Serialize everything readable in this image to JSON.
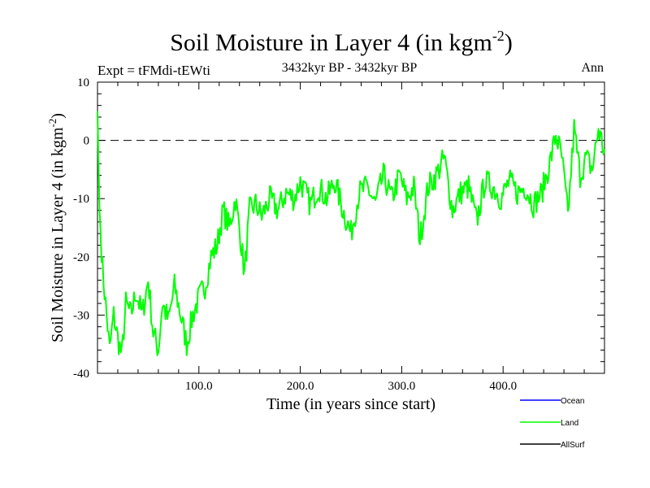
{
  "chart_data": {
    "type": "line",
    "title": "Soil Moisture in Layer 4 (in kgm",
    "title_sup": "-2",
    "title_close": ")",
    "subtitle_left": "Expt = tFMdi-tEWti",
    "subtitle_center": "3432kyr BP - 3432kyr BP",
    "subtitle_right": "Ann",
    "xlabel": "Time (in years since start)",
    "ylabel": "Soil Moisture in Layer 4 (in kgm",
    "ylabel_sup": "-2",
    "ylabel_close": ")",
    "xlim": [
      0,
      500
    ],
    "ylim": [
      -40,
      10
    ],
    "x_ticks": [
      100,
      200,
      300,
      400
    ],
    "x_tick_labels": [
      "100.0",
      "200.0",
      "300.0",
      "400.0"
    ],
    "y_ticks": [
      -40,
      -30,
      -20,
      -10,
      0,
      10
    ],
    "y_tick_labels": [
      "-40",
      "-30",
      "-20",
      "-10",
      "0",
      "10"
    ],
    "reference_line": 0,
    "series": [
      {
        "name": "Land",
        "color": "#00ff00",
        "key_points": [
          [
            0,
            5
          ],
          [
            2,
            -12
          ],
          [
            5,
            -22
          ],
          [
            8,
            -28
          ],
          [
            12,
            -36
          ],
          [
            16,
            -30
          ],
          [
            20,
            -34
          ],
          [
            24,
            -37
          ],
          [
            28,
            -28
          ],
          [
            33,
            -30
          ],
          [
            38,
            -26
          ],
          [
            44,
            -30
          ],
          [
            50,
            -24
          ],
          [
            55,
            -33
          ],
          [
            60,
            -36
          ],
          [
            64,
            -28
          ],
          [
            70,
            -31
          ],
          [
            76,
            -25
          ],
          [
            82,
            -30
          ],
          [
            88,
            -35
          ],
          [
            94,
            -30
          ],
          [
            100,
            -27
          ],
          [
            106,
            -25
          ],
          [
            112,
            -20
          ],
          [
            118,
            -18
          ],
          [
            124,
            -12
          ],
          [
            130,
            -15
          ],
          [
            136,
            -10
          ],
          [
            142,
            -18
          ],
          [
            145,
            -23
          ],
          [
            150,
            -12
          ],
          [
            156,
            -11
          ],
          [
            162,
            -13
          ],
          [
            170,
            -10
          ],
          [
            178,
            -12
          ],
          [
            186,
            -9
          ],
          [
            194,
            -10
          ],
          [
            200,
            -7
          ],
          [
            210,
            -11
          ],
          [
            218,
            -8
          ],
          [
            226,
            -10
          ],
          [
            234,
            -7
          ],
          [
            242,
            -12
          ],
          [
            250,
            -16
          ],
          [
            258,
            -9
          ],
          [
            266,
            -8
          ],
          [
            274,
            -11
          ],
          [
            282,
            -6
          ],
          [
            290,
            -10
          ],
          [
            298,
            -6
          ],
          [
            305,
            -10
          ],
          [
            312,
            -8
          ],
          [
            318,
            -17
          ],
          [
            326,
            -8
          ],
          [
            334,
            -6
          ],
          [
            342,
            -3
          ],
          [
            350,
            -12
          ],
          [
            358,
            -9
          ],
          [
            366,
            -8
          ],
          [
            374,
            -14
          ],
          [
            382,
            -7
          ],
          [
            390,
            -8
          ],
          [
            398,
            -10
          ],
          [
            406,
            -7
          ],
          [
            414,
            -9
          ],
          [
            422,
            -8
          ],
          [
            430,
            -11
          ],
          [
            438,
            -9
          ],
          [
            446,
            -4
          ],
          [
            452,
            1
          ],
          [
            458,
            -3
          ],
          [
            464,
            -13
          ],
          [
            470,
            2
          ],
          [
            476,
            -6
          ],
          [
            482,
            -3
          ],
          [
            488,
            -5
          ],
          [
            494,
            2
          ],
          [
            500,
            -2
          ]
        ]
      }
    ],
    "legend": [
      {
        "label": "Ocean",
        "color": "#0000ff"
      },
      {
        "label": "Land",
        "color": "#00ff00"
      },
      {
        "label": "AllSurf",
        "color": "#000000"
      }
    ]
  }
}
